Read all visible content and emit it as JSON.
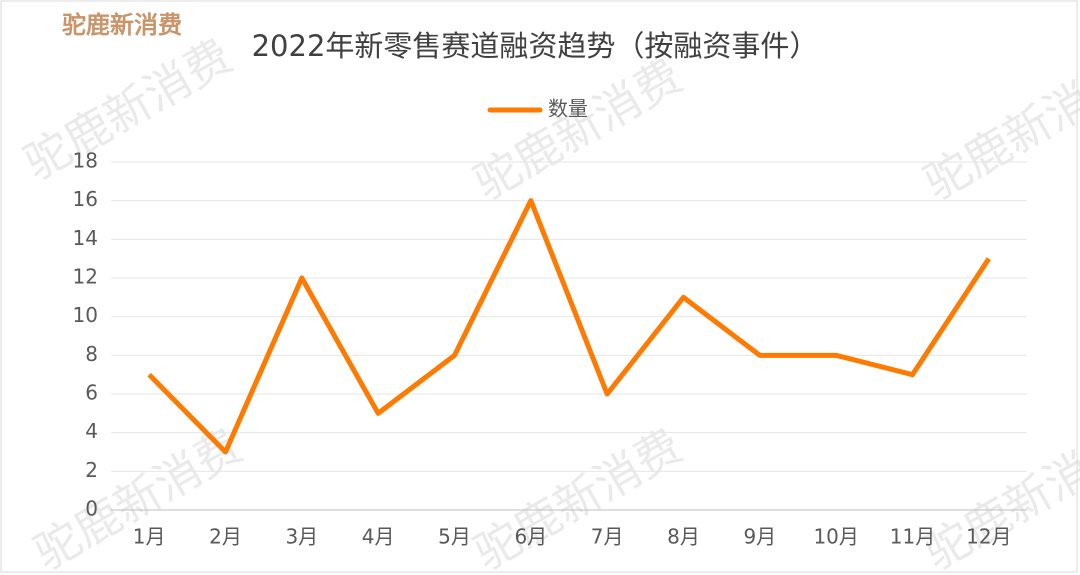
{
  "chart_data": {
    "type": "line",
    "title": "2022年新零售赛道融资趋势（按融资事件）",
    "logo": "驼鹿新消费",
    "categories": [
      "1月",
      "2月",
      "3月",
      "4月",
      "5月",
      "6月",
      "7月",
      "8月",
      "9月",
      "10月",
      "11月",
      "12月"
    ],
    "series": [
      {
        "name": "数量",
        "color": "#ff7a00",
        "values": [
          7,
          3,
          12,
          5,
          8,
          16,
          6,
          11,
          8,
          8,
          7,
          13
        ]
      }
    ],
    "ylim": [
      0,
      18
    ],
    "yticks": [
      0,
      2,
      4,
      6,
      8,
      10,
      12,
      14,
      16,
      18
    ],
    "grid": true,
    "legend": "top"
  }
}
